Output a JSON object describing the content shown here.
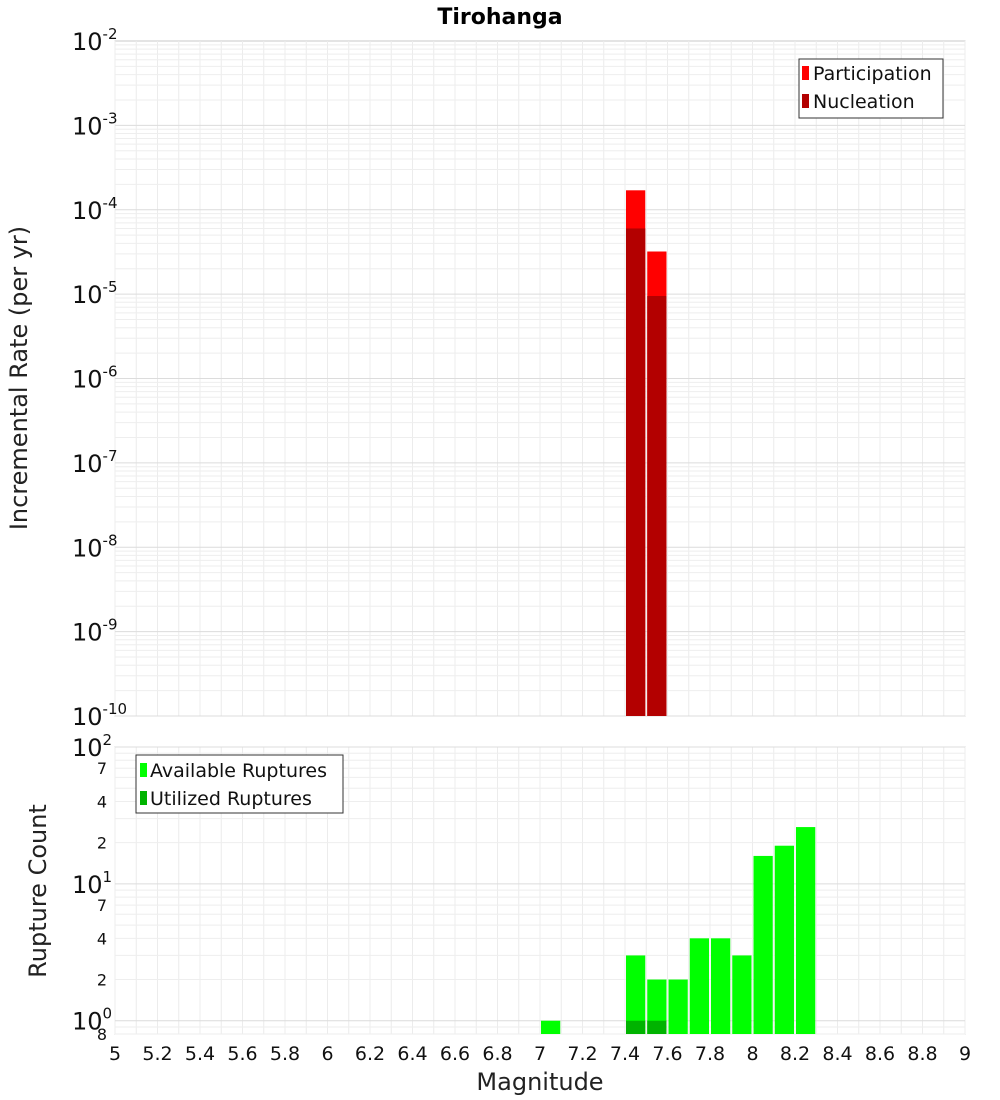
{
  "chart_data": [
    {
      "type": "bar",
      "title": "Tirohanga",
      "xlabel": "",
      "ylabel": "Incremental Rate (per yr)",
      "xlim": [
        5,
        9
      ],
      "ylim": [
        1e-10,
        0.01
      ],
      "yscale": "log",
      "bin_width": 0.1,
      "grid": true,
      "legend_position": "top-right",
      "y_ticks": [
        {
          "mantissa": "10",
          "exp": "-10"
        },
        {
          "mantissa": "10",
          "exp": "-9"
        },
        {
          "mantissa": "10",
          "exp": "-8"
        },
        {
          "mantissa": "10",
          "exp": "-7"
        },
        {
          "mantissa": "10",
          "exp": "-6"
        },
        {
          "mantissa": "10",
          "exp": "-5"
        },
        {
          "mantissa": "10",
          "exp": "-4"
        },
        {
          "mantissa": "10",
          "exp": "-3"
        },
        {
          "mantissa": "10",
          "exp": "-2"
        }
      ],
      "series": [
        {
          "name": "Participation",
          "color": "#ff0000",
          "x": [
            7.45,
            7.55
          ],
          "values": [
            0.00017,
            3.2e-05
          ]
        },
        {
          "name": "Nucleation",
          "color": "#b30000",
          "x": [
            7.45,
            7.55
          ],
          "values": [
            6e-05,
            9.5e-06
          ]
        }
      ]
    },
    {
      "type": "bar",
      "title": "",
      "xlabel": "Magnitude",
      "ylabel": "Rupture Count",
      "xlim": [
        5,
        9
      ],
      "ylim": [
        0.8,
        100
      ],
      "yscale": "log",
      "bin_width": 0.1,
      "grid": true,
      "legend_position": "top-left",
      "x_ticks": [
        "5",
        "5.2",
        "5.4",
        "5.6",
        "5.8",
        "6",
        "6.2",
        "6.4",
        "6.6",
        "6.8",
        "7",
        "7.2",
        "7.4",
        "7.6",
        "7.8",
        "8",
        "8.2",
        "8.4",
        "8.6",
        "8.8",
        "9"
      ],
      "y_ticks": [
        {
          "value": 100,
          "mantissa": "10",
          "exp": "2",
          "major": true
        },
        {
          "value": 70,
          "label": "7"
        },
        {
          "value": 40,
          "label": "4"
        },
        {
          "value": 20,
          "label": "2"
        },
        {
          "value": 10,
          "mantissa": "10",
          "exp": "1",
          "major": true
        },
        {
          "value": 7,
          "label": "7"
        },
        {
          "value": 4,
          "label": "4"
        },
        {
          "value": 2,
          "label": "2"
        },
        {
          "value": 1,
          "mantissa": "10",
          "exp": "0",
          "major": true
        },
        {
          "value": 0.8,
          "label": "8"
        }
      ],
      "series": [
        {
          "name": "Available Ruptures",
          "color": "#00ff00",
          "x": [
            7.05,
            7.45,
            7.55,
            7.65,
            7.75,
            7.85,
            7.95,
            8.05,
            8.15,
            8.25
          ],
          "values": [
            1,
            3,
            2,
            2,
            4,
            4,
            3,
            16,
            19,
            26
          ]
        },
        {
          "name": "Utilized Ruptures",
          "color": "#00b300",
          "x": [
            7.45,
            7.55
          ],
          "values": [
            1,
            1
          ]
        }
      ]
    }
  ]
}
